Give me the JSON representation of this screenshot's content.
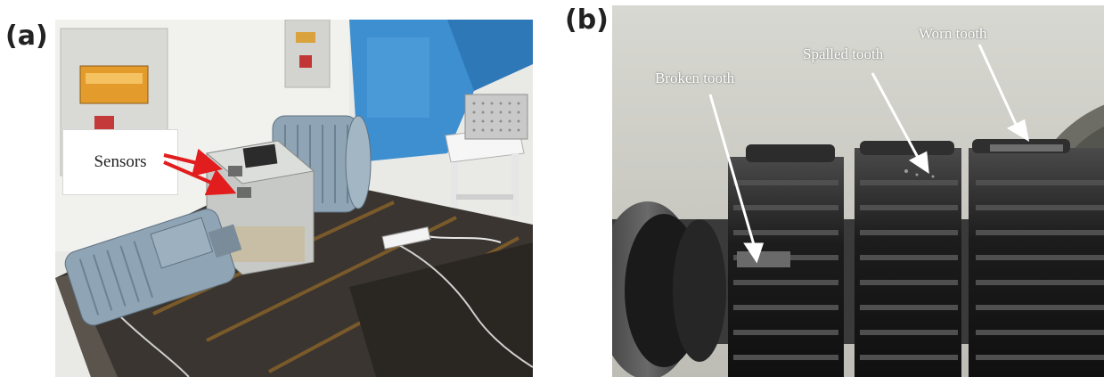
{
  "panels": [
    {
      "label": "(a)",
      "callout": "Sensors"
    },
    {
      "label": "(b)",
      "labels": [
        "Broken tooth",
        "Spalled tooth",
        "Worn tooth"
      ]
    }
  ],
  "colors": {
    "arrow_red": "#e11d1d",
    "motor_blue": "#8fa4b4",
    "cabinet_blue": "#3e8fd0",
    "gear_black": "#161616"
  }
}
